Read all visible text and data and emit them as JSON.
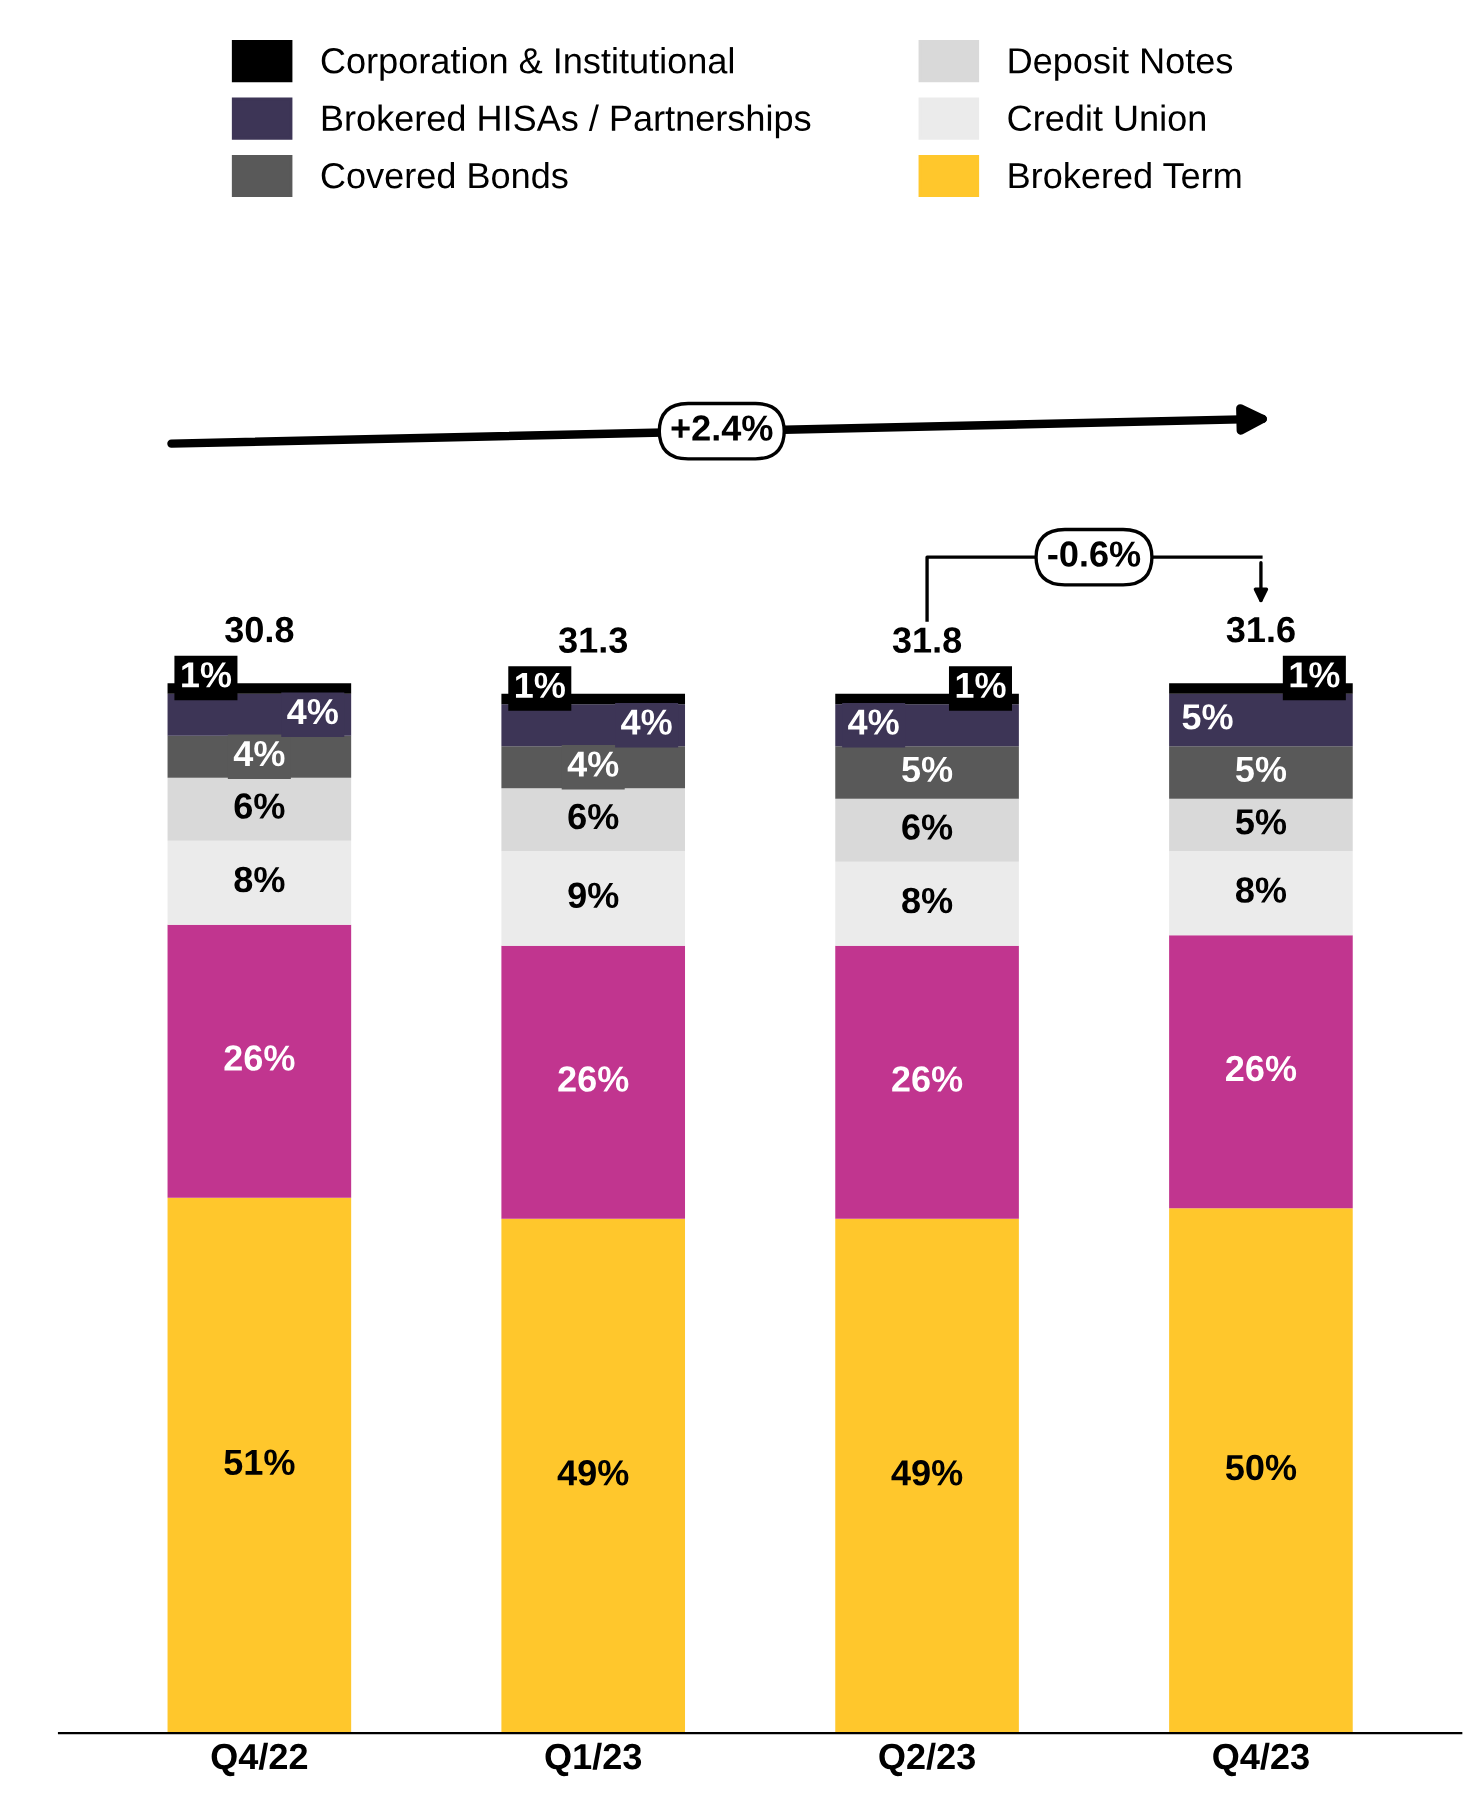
{
  "chart_data": {
    "type": "bar",
    "stacked": true,
    "categories": [
      "Q4/22",
      "Q1/23",
      "Q2/23",
      "Q4/23"
    ],
    "series": [
      {
        "name": "Brokered Term",
        "color": "#ffc72c",
        "values": [
          51,
          49,
          49,
          50
        ],
        "value_labels": [
          "51%",
          "49%",
          "49%",
          "50%"
        ]
      },
      {
        "color": "#c1358f",
        "values": [
          26,
          26,
          26,
          26
        ],
        "value_labels": [
          "26%",
          "26%",
          "26%",
          "26%"
        ]
      },
      {
        "name": "Credit Union",
        "color": "#ebebeb",
        "values": [
          8,
          9,
          8,
          8
        ],
        "value_labels": [
          "8%",
          "9%",
          "8%",
          "8%"
        ]
      },
      {
        "name": "Deposit Notes",
        "color": "#d9d9d9",
        "values": [
          6,
          6,
          6,
          5
        ],
        "value_labels": [
          "6%",
          "6%",
          "6%",
          "5%"
        ]
      },
      {
        "name": "Covered Bonds",
        "color": "#595959",
        "values": [
          4,
          4,
          5,
          5
        ],
        "value_labels": [
          "4%",
          "4%",
          "5%",
          "5%"
        ]
      },
      {
        "name": "Brokered HISAs / Partnerships",
        "color": "#3d3556",
        "values": [
          4,
          4,
          4,
          5
        ],
        "value_labels": [
          "4%",
          "4%",
          "4%",
          "5%"
        ]
      },
      {
        "name": "Corporation & Institutional",
        "color": "#000000",
        "values": [
          1,
          1,
          1,
          1
        ],
        "value_labels": [
          "1%",
          "1%",
          "1%",
          "1%"
        ]
      }
    ],
    "annotations": [
      {
        "text": "30.8",
        "x": "Q4/22",
        "y": 100
      },
      {
        "text": "31.3",
        "x": "Q1/23",
        "y": 99
      },
      {
        "text": "31.8",
        "x": "Q2/23",
        "y": 99
      },
      {
        "text": "31.6",
        "x": "Q4/23",
        "y": 100
      },
      "+2.4%",
      "-0.6%"
    ],
    "legend": "top",
    "grid": false
  }
}
